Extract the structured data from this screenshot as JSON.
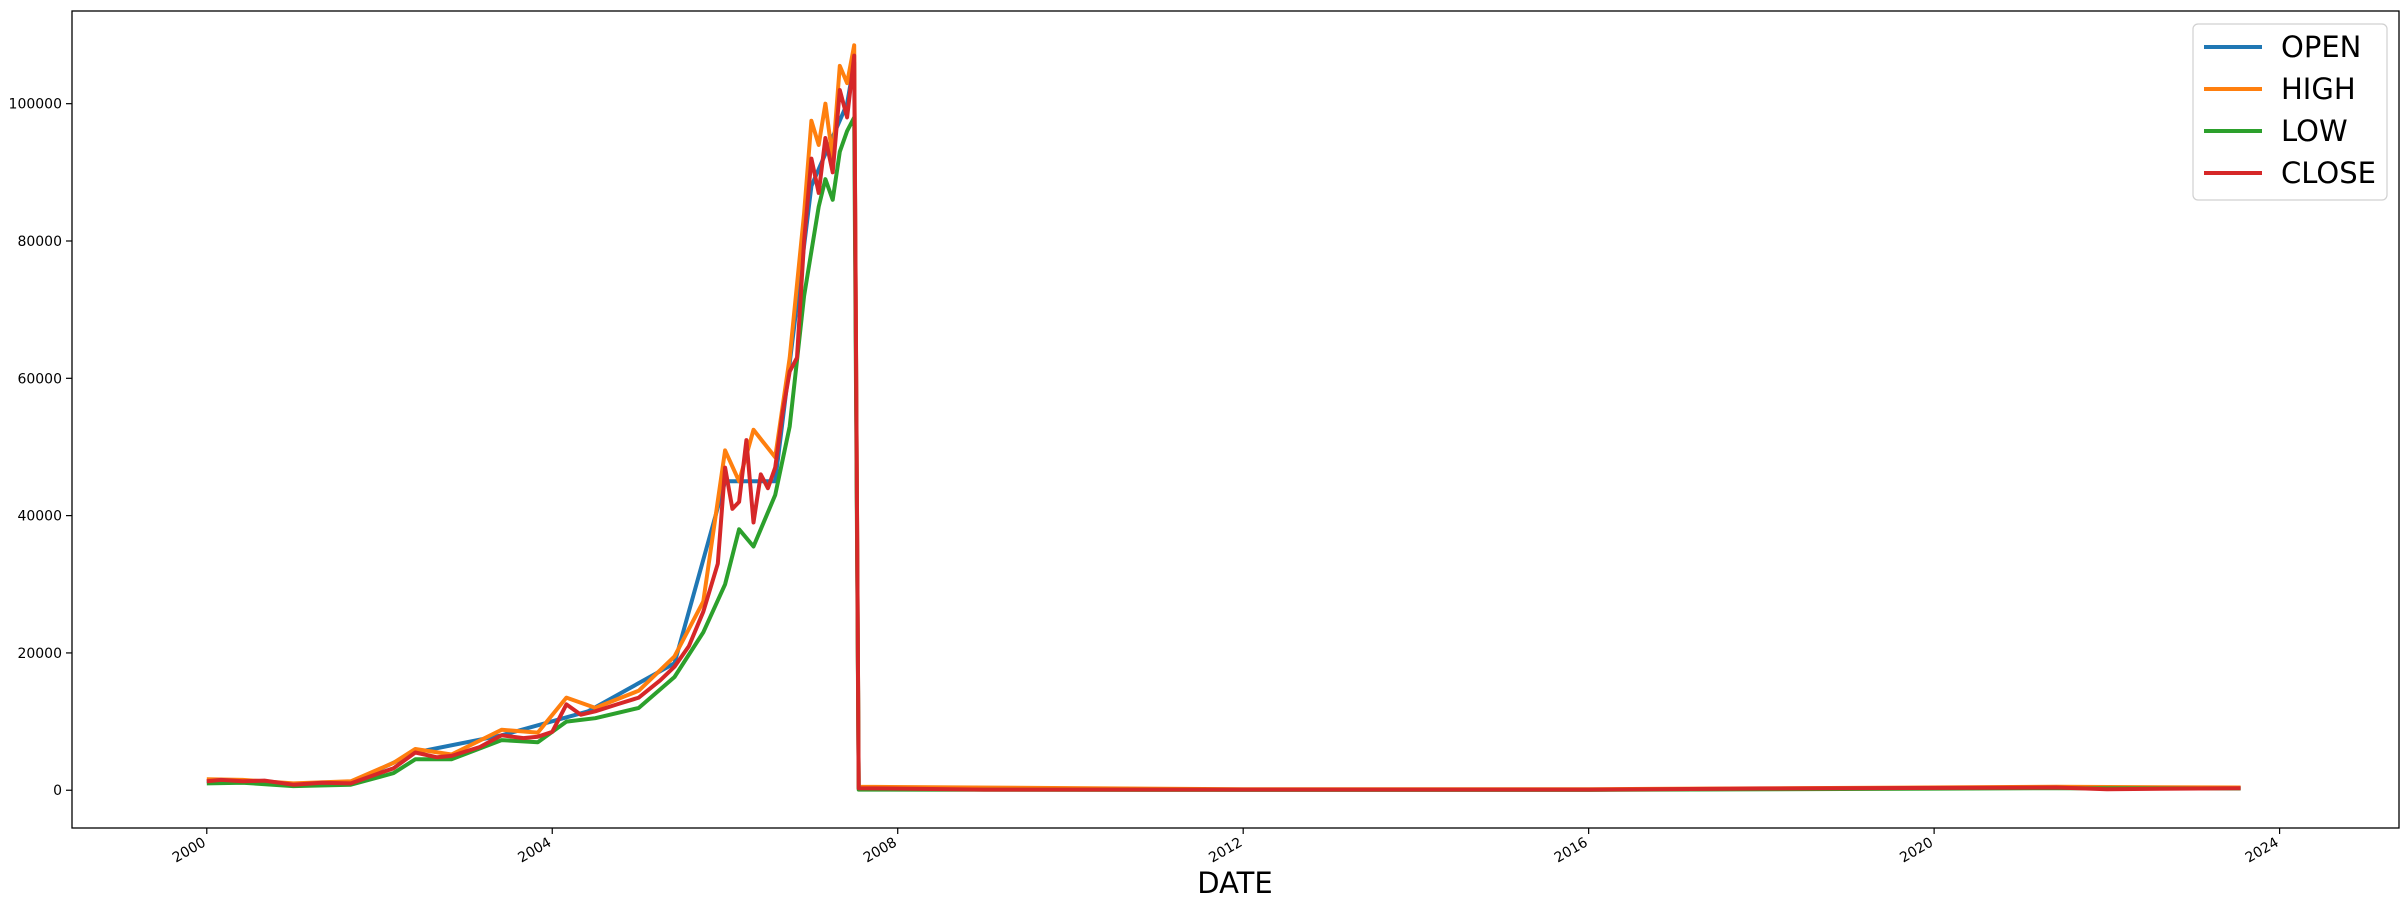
{
  "chart_data": {
    "type": "line",
    "title": "",
    "xlabel": "DATE",
    "ylabel": "",
    "xlim": [
      "1998-06-10",
      "2025-05-20"
    ],
    "ylim": [
      -5500,
      113500
    ],
    "x_ticks": [
      "2000",
      "2004",
      "2008",
      "2012",
      "2016",
      "2020",
      "2024"
    ],
    "y_ticks": [
      0,
      20000,
      40000,
      60000,
      80000,
      100000
    ],
    "grid": false,
    "legend_position": "top-right",
    "series": [
      {
        "name": "OPEN",
        "color": "#1f77b4",
        "points": [
          [
            "2000-01-01",
            1300
          ],
          [
            "2001-01-01",
            900
          ],
          [
            "2001-09-01",
            1100
          ],
          [
            "2002-06-01",
            5500
          ],
          [
            "2003-06-01",
            8000
          ],
          [
            "2004-06-01",
            11500
          ],
          [
            "2005-06-01",
            18500
          ],
          [
            "2006-01-01",
            45000
          ],
          [
            "2006-08-01",
            45000
          ],
          [
            "2007-01-01",
            88000
          ],
          [
            "2007-06-01",
            100000
          ],
          [
            "2007-07-01",
            106000
          ],
          [
            "2007-07-20",
            300
          ],
          [
            "2012-01-01",
            100
          ],
          [
            "2016-01-01",
            100
          ],
          [
            "2021-06-01",
            400
          ],
          [
            "2023-07-20",
            300
          ]
        ]
      },
      {
        "name": "HIGH",
        "color": "#ff7f0e",
        "points": [
          [
            "2000-01-01",
            1600
          ],
          [
            "2000-06-01",
            1500
          ],
          [
            "2001-01-01",
            1000
          ],
          [
            "2001-09-01",
            1300
          ],
          [
            "2002-03-01",
            4000
          ],
          [
            "2002-06-01",
            6000
          ],
          [
            "2002-11-01",
            5200
          ],
          [
            "2003-06-01",
            8800
          ],
          [
            "2003-11-01",
            8400
          ],
          [
            "2004-03-01",
            13500
          ],
          [
            "2004-07-01",
            12000
          ],
          [
            "2005-01-01",
            14500
          ],
          [
            "2005-06-01",
            19500
          ],
          [
            "2005-10-01",
            27500
          ],
          [
            "2006-01-01",
            49500
          ],
          [
            "2006-03-01",
            45000
          ],
          [
            "2006-05-01",
            52500
          ],
          [
            "2006-08-01",
            48500
          ],
          [
            "2006-10-01",
            63000
          ],
          [
            "2006-12-01",
            84000
          ],
          [
            "2007-01-01",
            97500
          ],
          [
            "2007-02-01",
            94000
          ],
          [
            "2007-03-01",
            100000
          ],
          [
            "2007-04-01",
            92000
          ],
          [
            "2007-05-01",
            105500
          ],
          [
            "2007-06-01",
            103000
          ],
          [
            "2007-07-01",
            108500
          ],
          [
            "2007-07-20",
            500
          ],
          [
            "2012-01-01",
            150
          ],
          [
            "2016-01-01",
            150
          ],
          [
            "2021-06-01",
            500
          ],
          [
            "2023-07-20",
            400
          ]
        ]
      },
      {
        "name": "LOW",
        "color": "#2ca02c",
        "points": [
          [
            "2000-01-01",
            1000
          ],
          [
            "2000-06-01",
            1100
          ],
          [
            "2001-01-01",
            600
          ],
          [
            "2001-09-01",
            800
          ],
          [
            "2002-03-01",
            2500
          ],
          [
            "2002-06-01",
            4500
          ],
          [
            "2002-11-01",
            4500
          ],
          [
            "2003-06-01",
            7300
          ],
          [
            "2003-11-01",
            7000
          ],
          [
            "2004-03-01",
            10000
          ],
          [
            "2004-07-01",
            10500
          ],
          [
            "2005-01-01",
            12000
          ],
          [
            "2005-06-01",
            16500
          ],
          [
            "2005-10-01",
            23000
          ],
          [
            "2006-01-01",
            30000
          ],
          [
            "2006-03-01",
            38000
          ],
          [
            "2006-05-01",
            35500
          ],
          [
            "2006-08-01",
            43000
          ],
          [
            "2006-10-01",
            53000
          ],
          [
            "2006-12-01",
            72000
          ],
          [
            "2007-01-01",
            78500
          ],
          [
            "2007-02-01",
            85000
          ],
          [
            "2007-03-01",
            89000
          ],
          [
            "2007-04-01",
            86000
          ],
          [
            "2007-05-01",
            93000
          ],
          [
            "2007-06-01",
            96000
          ],
          [
            "2007-07-01",
            98000
          ],
          [
            "2007-07-20",
            100
          ],
          [
            "2012-01-01",
            50
          ],
          [
            "2016-01-01",
            50
          ],
          [
            "2021-06-01",
            300
          ],
          [
            "2023-07-20",
            250
          ]
        ]
      },
      {
        "name": "CLOSE",
        "color": "#d62728",
        "points": [
          [
            "2000-01-01",
            1300
          ],
          [
            "2000-03-01",
            1500
          ],
          [
            "2000-06-01",
            1300
          ],
          [
            "2000-09-01",
            1400
          ],
          [
            "2001-01-01",
            800
          ],
          [
            "2001-05-01",
            1100
          ],
          [
            "2001-09-01",
            1000
          ],
          [
            "2002-01-01",
            2500
          ],
          [
            "2002-03-01",
            3200
          ],
          [
            "2002-06-01",
            5500
          ],
          [
            "2002-09-01",
            4800
          ],
          [
            "2002-11-01",
            5000
          ],
          [
            "2003-03-01",
            6300
          ],
          [
            "2003-06-01",
            8000
          ],
          [
            "2003-09-01",
            7600
          ],
          [
            "2003-11-01",
            7800
          ],
          [
            "2004-01-01",
            8500
          ],
          [
            "2004-03-01",
            12500
          ],
          [
            "2004-05-01",
            11000
          ],
          [
            "2004-07-01",
            11500
          ],
          [
            "2004-10-01",
            12500
          ],
          [
            "2005-01-01",
            13500
          ],
          [
            "2005-04-01",
            16000
          ],
          [
            "2005-06-01",
            18000
          ],
          [
            "2005-08-01",
            21000
          ],
          [
            "2005-10-01",
            26000
          ],
          [
            "2005-12-01",
            33000
          ],
          [
            "2006-01-01",
            47000
          ],
          [
            "2006-02-01",
            41000
          ],
          [
            "2006-03-01",
            42000
          ],
          [
            "2006-04-01",
            51000
          ],
          [
            "2006-05-01",
            39000
          ],
          [
            "2006-06-01",
            46000
          ],
          [
            "2006-07-01",
            44000
          ],
          [
            "2006-08-01",
            47000
          ],
          [
            "2006-09-01",
            55000
          ],
          [
            "2006-10-01",
            61000
          ],
          [
            "2006-11-01",
            63000
          ],
          [
            "2006-12-01",
            80000
          ],
          [
            "2007-01-01",
            92000
          ],
          [
            "2007-02-01",
            87000
          ],
          [
            "2007-03-01",
            95000
          ],
          [
            "2007-04-01",
            90000
          ],
          [
            "2007-05-01",
            102000
          ],
          [
            "2007-06-01",
            98000
          ],
          [
            "2007-07-01",
            107000
          ],
          [
            "2007-07-20",
            300
          ],
          [
            "2009-01-01",
            100
          ],
          [
            "2012-01-01",
            100
          ],
          [
            "2016-01-01",
            100
          ],
          [
            "2018-01-01",
            250
          ],
          [
            "2021-06-01",
            400
          ],
          [
            "2022-01-01",
            150
          ],
          [
            "2023-07-20",
            300
          ]
        ]
      }
    ]
  }
}
